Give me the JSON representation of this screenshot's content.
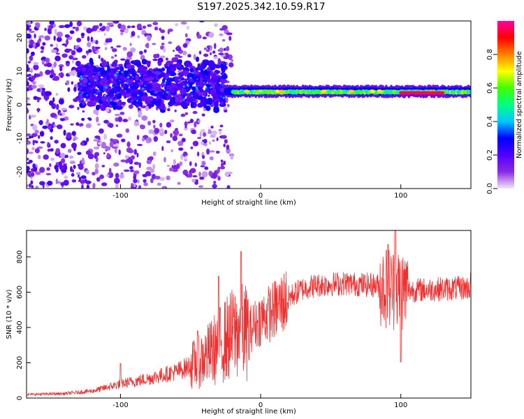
{
  "title": "S197.2025.342.10.59.R17",
  "chart_data": [
    {
      "type": "heatmap",
      "xlabel": "Height of straight line (km)",
      "ylabel": "Frequency (Hz)",
      "xlim": [
        -167,
        150
      ],
      "ylim": [
        -25,
        25
      ],
      "xticks": [
        -100,
        0,
        100
      ],
      "yticks": [
        -20,
        -10,
        0,
        10,
        20
      ],
      "grid": false,
      "colorbar": {
        "label": "Normalized spectral amplitude",
        "range": [
          0.0,
          1.0
        ],
        "ticks": [
          0.0,
          0.2,
          0.4,
          0.6,
          0.8
        ],
        "colormap": "rainbow",
        "stops": [
          "#f2e6fa",
          "#8a2be2",
          "#5000ff",
          "#0000ff",
          "#00c8ff",
          "#00ff80",
          "#40ff00",
          "#ffff00",
          "#ff8000",
          "#ff0000",
          "#ff00a0"
        ]
      },
      "features": [
        {
          "name": "broadband scatter",
          "x_range": [
            -167,
            -20
          ],
          "freq_range": [
            -25,
            25
          ],
          "amplitude": 0.15
        },
        {
          "name": "noisy band",
          "x_range": [
            -130,
            -25
          ],
          "freq_range": [
            0,
            12
          ],
          "amplitude": 0.3
        },
        {
          "name": "tonal line",
          "x_range": [
            -25,
            150
          ],
          "freq_center": 4,
          "freq_width": 2,
          "amplitude": 0.55
        },
        {
          "name": "peak segment",
          "x_range": [
            100,
            130
          ],
          "freq_center": 3.5,
          "amplitude": 0.95
        }
      ]
    },
    {
      "type": "line",
      "xlabel": "Height of straight line (km)",
      "ylabel": "SNR (10 * v/v)",
      "xlim": [
        -167,
        150
      ],
      "ylim": [
        0,
        950
      ],
      "xticks": [
        -100,
        0,
        100
      ],
      "yticks": [
        0,
        200,
        400,
        600,
        800
      ],
      "grid": false,
      "color": "#f03030",
      "envelope": {
        "x": [
          -167,
          -140,
          -120,
          -100,
          -80,
          -60,
          -45,
          -35,
          -25,
          -15,
          -10,
          0,
          10,
          20,
          30,
          40,
          60,
          80,
          90,
          95,
          100,
          105,
          120,
          150
        ],
        "y": [
          20,
          25,
          40,
          80,
          110,
          150,
          200,
          260,
          330,
          390,
          370,
          450,
          500,
          570,
          620,
          640,
          650,
          640,
          630,
          620,
          620,
          610,
          615,
          625
        ]
      },
      "spikes": [
        {
          "x": -100,
          "y": 195
        },
        {
          "x": -45,
          "y": 380
        },
        {
          "x": -30,
          "y": 690
        },
        {
          "x": -14,
          "y": 830
        },
        {
          "x": 91,
          "y": 870
        },
        {
          "x": 96,
          "y": 950
        },
        {
          "x": 100,
          "y": 205
        },
        {
          "x": 150,
          "y": 710
        }
      ]
    }
  ]
}
